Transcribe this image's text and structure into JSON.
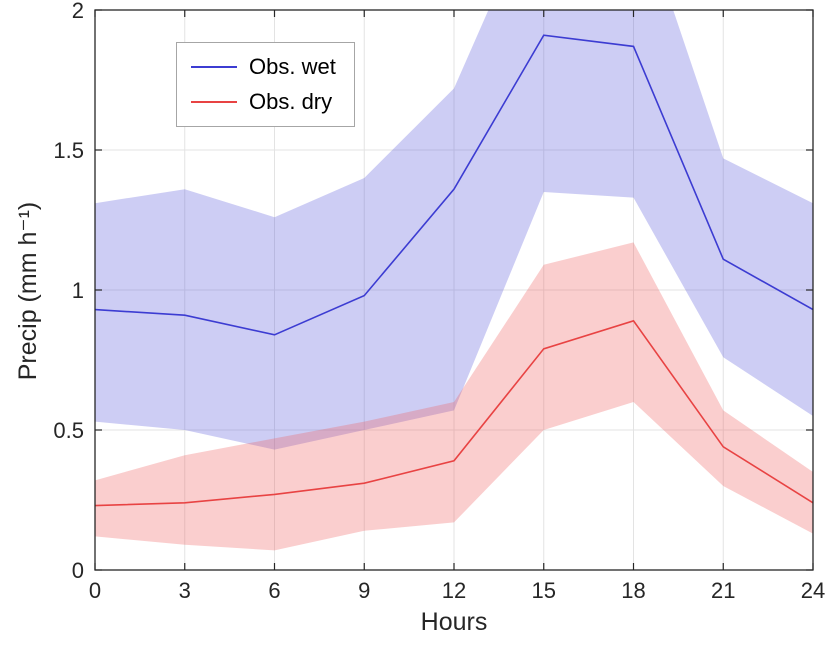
{
  "chart_data": {
    "type": "line",
    "title": "",
    "xlabel": "Hours",
    "ylabel": "Precip (mm h⁻¹)",
    "xlim": [
      0,
      24
    ],
    "ylim": [
      0,
      2
    ],
    "xticks": [
      0,
      3,
      6,
      9,
      12,
      15,
      18,
      21,
      24
    ],
    "xtick_labels": [
      "0",
      "3",
      "6",
      "9",
      "12",
      "15",
      "18",
      "21",
      "24"
    ],
    "yticks": [
      0,
      0.5,
      1,
      1.5,
      2
    ],
    "ytick_labels": [
      "0",
      "0.5",
      "1",
      "1.5",
      "2"
    ],
    "grid": true,
    "grid_color": "#e3e3e3",
    "axis_color": "#262626",
    "legend_position": "top-left",
    "x": [
      0,
      3,
      6,
      9,
      12,
      15,
      18,
      21,
      24
    ],
    "series": [
      {
        "name": "Obs. wet",
        "color": "#3c3cd2",
        "band_color": "rgba(88, 88, 220, 0.3)",
        "values": [
          0.93,
          0.91,
          0.84,
          0.98,
          1.36,
          1.91,
          1.87,
          1.11,
          0.93
        ],
        "band_upper": [
          1.31,
          1.36,
          1.26,
          1.4,
          1.72,
          2.45,
          2.42,
          1.47,
          1.31
        ],
        "band_lower": [
          0.53,
          0.5,
          0.43,
          0.5,
          0.57,
          1.35,
          1.33,
          0.76,
          0.55
        ]
      },
      {
        "name": "Obs. dry",
        "color": "#e84343",
        "band_color": "rgba(238, 92, 92, 0.3)",
        "values": [
          0.23,
          0.24,
          0.27,
          0.31,
          0.39,
          0.79,
          0.89,
          0.44,
          0.24
        ],
        "band_upper": [
          0.32,
          0.41,
          0.47,
          0.53,
          0.6,
          1.09,
          1.17,
          0.57,
          0.35
        ],
        "band_lower": [
          0.12,
          0.09,
          0.07,
          0.14,
          0.17,
          0.5,
          0.6,
          0.3,
          0.13
        ]
      }
    ]
  }
}
